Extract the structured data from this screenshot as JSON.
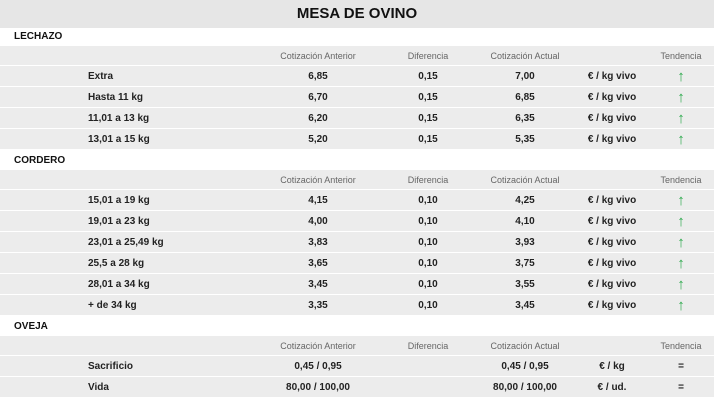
{
  "title": "MESA DE OVINO",
  "sections": [
    {
      "name": "LECHAZO",
      "header": [
        "Cotización Anterior",
        "Diferencia",
        "Cotización Actual",
        "Tendencia"
      ],
      "rows": [
        [
          "Extra",
          "6,85",
          "0,15",
          "7,00",
          "€ / kg vivo",
          "↑"
        ],
        [
          "Hasta 11 kg",
          "6,70",
          "0,15",
          "6,85",
          "€ / kg vivo",
          "↑"
        ],
        [
          "11,01 a 13 kg",
          "6,20",
          "0,15",
          "6,35",
          "€ / kg vivo",
          "↑"
        ],
        [
          "13,01 a 15 kg",
          "5,20",
          "0,15",
          "5,35",
          "€ / kg vivo",
          "↑"
        ]
      ]
    },
    {
      "name": "CORDERO",
      "header": [
        "Cotización Anterior",
        "Diferencia",
        "Cotización Actual",
        "Tendencia"
      ],
      "rows": [
        [
          "15,01 a 19 kg",
          "4,15",
          "0,10",
          "4,25",
          "€ / kg vivo",
          "↑"
        ],
        [
          "19,01 a 23 kg",
          "4,00",
          "0,10",
          "4,10",
          "€ / kg vivo",
          "↑"
        ],
        [
          "23,01 a 25,49 kg",
          "3,83",
          "0,10",
          "3,93",
          "€ / kg vivo",
          "↑"
        ],
        [
          "25,5 a 28 kg",
          "3,65",
          "0,10",
          "3,75",
          "€ / kg vivo",
          "↑"
        ],
        [
          "28,01 a 34 kg",
          "3,45",
          "0,10",
          "3,55",
          "€ / kg vivo",
          "↑"
        ],
        [
          "+ de 34 kg",
          "3,35",
          "0,10",
          "3,45",
          "€ / kg vivo",
          "↑"
        ]
      ]
    },
    {
      "name": "OVEJA",
      "header": [
        "Cotización Anterior",
        "Diferencia",
        "Cotización Actual",
        "Tendencia"
      ],
      "rows": [
        [
          "Sacrificio",
          "0,45 / 0,95",
          "",
          "0,45 / 0,95",
          "€ / kg",
          "="
        ],
        [
          "Vida",
          "80,00 / 100,00",
          "",
          "80,00 / 100,00",
          "€ / ud.",
          "="
        ]
      ]
    }
  ]
}
